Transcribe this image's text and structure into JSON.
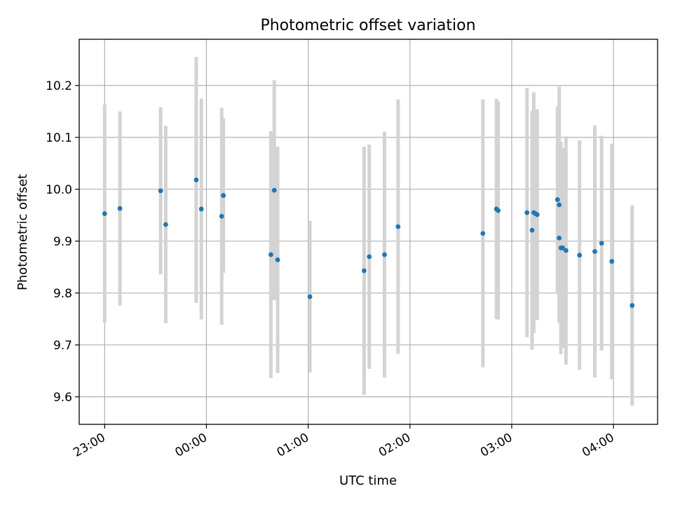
{
  "chart_data": {
    "type": "scatter",
    "title": "Photometric offset variation",
    "xlabel": "UTC time",
    "ylabel": "Photometric offset",
    "x_ticks": [
      "23:00",
      "00:00",
      "01:00",
      "02:00",
      "03:00",
      "04:00"
    ],
    "y_ticks": [
      "9.6",
      "9.7",
      "9.8",
      "9.9",
      "10.0",
      "10.1",
      "10.2"
    ],
    "xlim": [
      "22:45",
      "04:26"
    ],
    "ylim": [
      9.547,
      10.289
    ],
    "grid": true,
    "colors": {
      "point": "#1f77b4",
      "errorbar": "#d3d3d3"
    },
    "series": [
      {
        "points": [
          {
            "x": "23:00",
            "y": 9.953,
            "err": 0.21
          },
          {
            "x": "23:09",
            "y": 9.963,
            "err": 0.187
          },
          {
            "x": "23:33",
            "y": 9.997,
            "err": 0.161
          },
          {
            "x": "23:36",
            "y": 9.932,
            "err": 0.19
          },
          {
            "x": "23:54",
            "y": 10.018,
            "err": 0.237
          },
          {
            "x": "23:57",
            "y": 9.962,
            "err": 0.213
          },
          {
            "x": "00:09",
            "y": 9.948,
            "err": 0.209
          },
          {
            "x": "00:10",
            "y": 9.988,
            "err": 0.149
          },
          {
            "x": "00:38",
            "y": 9.874,
            "err": 0.238
          },
          {
            "x": "00:40",
            "y": 9.998,
            "err": 0.212
          },
          {
            "x": "00:42",
            "y": 9.864,
            "err": 0.218
          },
          {
            "x": "01:01",
            "y": 9.793,
            "err": 0.146
          },
          {
            "x": "01:33",
            "y": 9.843,
            "err": 0.239
          },
          {
            "x": "01:36",
            "y": 9.87,
            "err": 0.216
          },
          {
            "x": "01:45",
            "y": 9.874,
            "err": 0.237
          },
          {
            "x": "01:53",
            "y": 9.928,
            "err": 0.245
          },
          {
            "x": "02:43",
            "y": 9.915,
            "err": 0.258
          },
          {
            "x": "02:51",
            "y": 9.962,
            "err": 0.212
          },
          {
            "x": "02:52",
            "y": 9.959,
            "err": 0.21
          },
          {
            "x": "03:09",
            "y": 9.955,
            "err": 0.24
          },
          {
            "x": "03:12",
            "y": 9.921,
            "err": 0.23
          },
          {
            "x": "03:13",
            "y": 9.955,
            "err": 0.232
          },
          {
            "x": "03:14",
            "y": 9.953,
            "err": 0.2
          },
          {
            "x": "03:15",
            "y": 9.951,
            "err": 0.203
          },
          {
            "x": "03:27",
            "y": 9.98,
            "err": 0.18
          },
          {
            "x": "03:28",
            "y": 9.97,
            "err": 0.228
          },
          {
            "x": "03:28",
            "y": 9.906,
            "err": 0.16
          },
          {
            "x": "03:29",
            "y": 9.887,
            "err": 0.205
          },
          {
            "x": "03:30",
            "y": 9.887,
            "err": 0.193
          },
          {
            "x": "03:32",
            "y": 9.882,
            "err": 0.22
          },
          {
            "x": "03:40",
            "y": 9.873,
            "err": 0.221
          },
          {
            "x": "03:49",
            "y": 9.88,
            "err": 0.243
          },
          {
            "x": "03:53",
            "y": 9.896,
            "err": 0.207
          },
          {
            "x": "03:59",
            "y": 9.861,
            "err": 0.227
          },
          {
            "x": "04:11",
            "y": 9.776,
            "err": 0.193
          }
        ]
      }
    ]
  }
}
